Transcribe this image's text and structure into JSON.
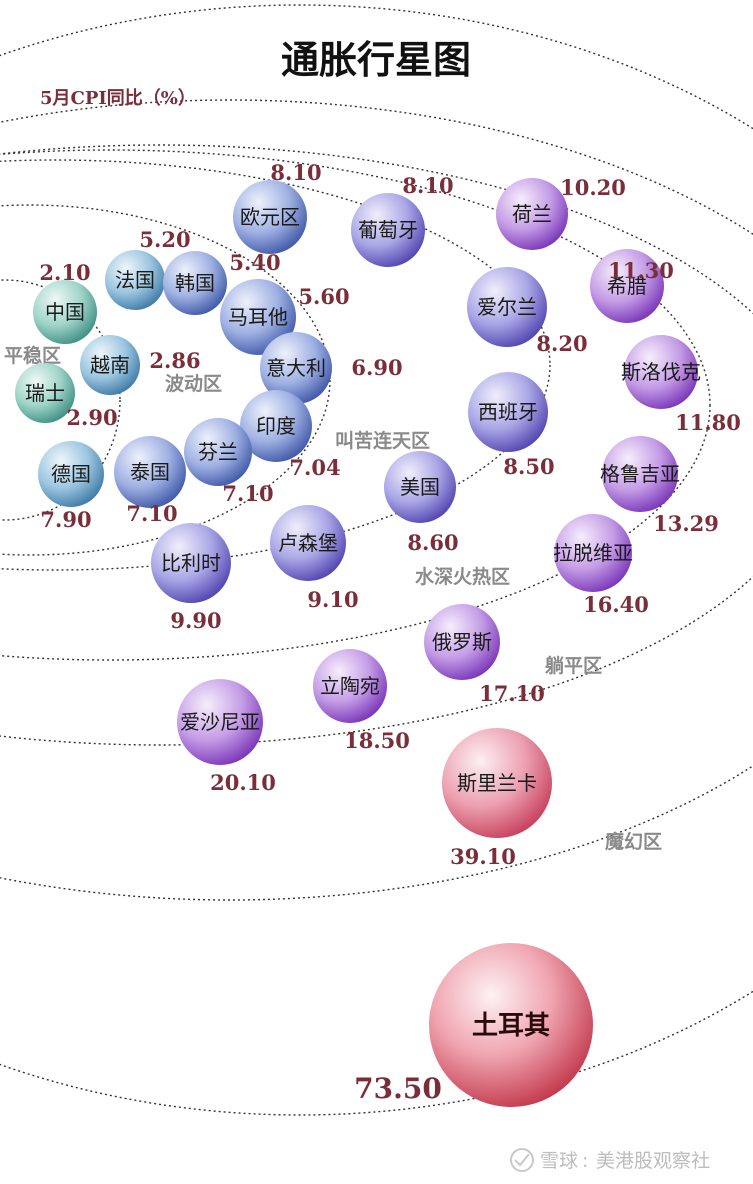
{
  "chart_data": {
    "type": "scatter",
    "title": "通胀行星图",
    "subtitle": "5月CPI同比（%）",
    "zones": [
      "平稳区",
      "波动区",
      "叫苦连天区",
      "水深火热区",
      "躺平区",
      "魔幻区"
    ],
    "points": [
      {
        "name": "中国",
        "value": "2.10"
      },
      {
        "name": "瑞士",
        "value": "2.90"
      },
      {
        "name": "越南",
        "value": "2.86"
      },
      {
        "name": "法国",
        "value": "5.20"
      },
      {
        "name": "韩国",
        "value": "5.40"
      },
      {
        "name": "欧元区",
        "value": "8.10"
      },
      {
        "name": "马耳他",
        "value": "5.60"
      },
      {
        "name": "意大利",
        "value": "6.90"
      },
      {
        "name": "印度",
        "value": "7.04"
      },
      {
        "name": "芬兰",
        "value": "7.10"
      },
      {
        "name": "泰国",
        "value": "7.10"
      },
      {
        "name": "德国",
        "value": "7.90"
      },
      {
        "name": "葡萄牙",
        "value": "8.10"
      },
      {
        "name": "爱尔兰",
        "value": "8.20"
      },
      {
        "name": "西班牙",
        "value": "8.50"
      },
      {
        "name": "美国",
        "value": "8.60"
      },
      {
        "name": "卢森堡",
        "value": "9.10"
      },
      {
        "name": "比利时",
        "value": "9.90"
      },
      {
        "name": "荷兰",
        "value": "10.20"
      },
      {
        "name": "希腊",
        "value": "11.30"
      },
      {
        "name": "斯洛伐克",
        "value": "11.80"
      },
      {
        "name": "格鲁吉亚",
        "value": "13.29"
      },
      {
        "name": "拉脱维亚",
        "value": "16.40"
      },
      {
        "name": "俄罗斯",
        "value": "17.10"
      },
      {
        "name": "立陶宛",
        "value": "18.50"
      },
      {
        "name": "爱沙尼亚",
        "value": "20.10"
      },
      {
        "name": "斯里兰卡",
        "value": "39.10"
      },
      {
        "name": "土耳其",
        "value": "73.50"
      }
    ]
  },
  "colors": {
    "calm": "#3f9e8f",
    "mid": "#4a6fb0",
    "purple": "#8a3fc0",
    "red": "#d0405c",
    "orbit": "#333333",
    "value": "#7a2e3a"
  },
  "watermark": {
    "brand": "雪球",
    "account": "美港股观察社"
  }
}
